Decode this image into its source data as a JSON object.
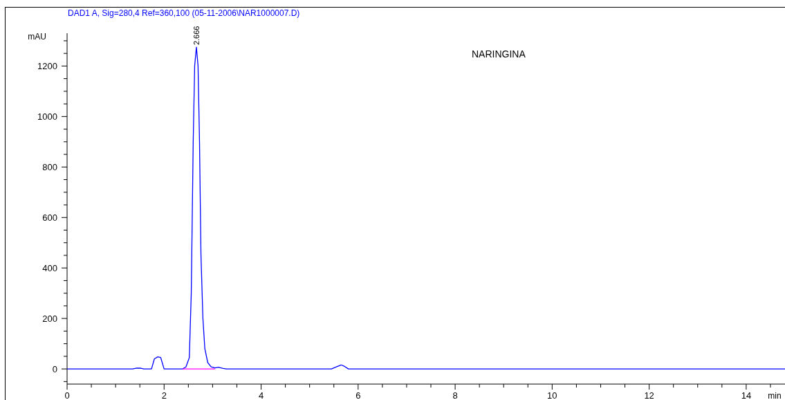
{
  "chart_data": {
    "type": "line",
    "title": "DAD1 A, Sig=280,4 Ref=360,100 (05-11-2006\\NAR1000007.D)",
    "xlabel": "min",
    "ylabel": "mAU",
    "annotations": [
      "NARINGINA",
      {
        "text": "2.666",
        "x": 2.666,
        "y": 1275
      }
    ],
    "xlim": [
      0,
      14.8
    ],
    "ylim": [
      -60,
      1330
    ],
    "xticks": [
      0,
      {
        "value": 0.5,
        "label": null
      },
      {
        "value": 1,
        "label": null
      },
      {
        "value": 1.5,
        "label": null
      },
      2,
      {
        "value": 2.5,
        "label": null
      },
      {
        "value": 3,
        "label": null
      },
      {
        "value": 3.5,
        "label": null
      },
      4,
      {
        "value": 4.5,
        "label": null
      },
      {
        "value": 5,
        "label": null
      },
      {
        "value": 5.5,
        "label": null
      },
      6,
      {
        "value": 6.5,
        "label": null
      },
      {
        "value": 7,
        "label": null
      },
      {
        "value": 7.5,
        "label": null
      },
      8,
      {
        "value": 8.5,
        "label": null
      },
      {
        "value": 9,
        "label": null
      },
      {
        "value": 9.5,
        "label": null
      },
      10,
      {
        "value": 10.5,
        "label": null
      },
      {
        "value": 11,
        "label": null
      },
      {
        "value": 11.5,
        "label": null
      },
      12,
      {
        "value": 12.5,
        "label": null
      },
      {
        "value": 13,
        "label": null
      },
      {
        "value": 13.5,
        "label": null
      },
      14,
      {
        "value": 14.5,
        "label": null
      }
    ],
    "yticks": [
      {
        "value": -50,
        "label": null
      },
      0,
      {
        "value": 50,
        "label": null
      },
      {
        "value": 100,
        "label": null
      },
      {
        "value": 150,
        "label": null
      },
      200,
      {
        "value": 250,
        "label": null
      },
      {
        "value": 300,
        "label": null
      },
      {
        "value": 350,
        "label": null
      },
      400,
      {
        "value": 450,
        "label": null
      },
      {
        "value": 500,
        "label": null
      },
      {
        "value": 550,
        "label": null
      },
      600,
      {
        "value": 650,
        "label": null
      },
      {
        "value": 700,
        "label": null
      },
      {
        "value": 750,
        "label": null
      },
      800,
      {
        "value": 850,
        "label": null
      },
      {
        "value": 900,
        "label": null
      },
      {
        "value": 950,
        "label": null
      },
      1000,
      {
        "value": 1050,
        "label": null
      },
      {
        "value": 1100,
        "label": null
      },
      {
        "value": 1150,
        "label": null
      },
      1200,
      {
        "value": 1250,
        "label": null
      },
      {
        "value": 1300,
        "label": null
      }
    ],
    "grid": false,
    "marker": "none",
    "line_style": "solid",
    "series": [
      {
        "color": "#0000ff",
        "x": [
          0,
          1.35,
          1.42,
          1.52,
          1.58,
          1.74,
          1.8,
          1.87,
          1.93,
          2.0,
          2.38,
          2.45,
          2.52,
          2.56,
          2.6,
          2.63,
          2.666,
          2.7,
          2.73,
          2.76,
          2.8,
          2.84,
          2.9,
          2.97,
          3.05,
          3.12,
          3.2,
          3.28,
          5.45,
          5.55,
          5.65,
          5.72,
          5.8,
          14.8
        ],
        "values": [
          0,
          0,
          3,
          3,
          0,
          0,
          40,
          48,
          45,
          0,
          0,
          8,
          45,
          300,
          900,
          1200,
          1275,
          1200,
          900,
          450,
          200,
          80,
          25,
          8,
          4,
          7,
          3,
          0,
          0,
          8,
          16,
          10,
          0,
          0
        ]
      },
      {
        "color": "#ff00ff",
        "x": [
          2.38,
          3.05
        ],
        "values": [
          0,
          0
        ]
      }
    ]
  }
}
